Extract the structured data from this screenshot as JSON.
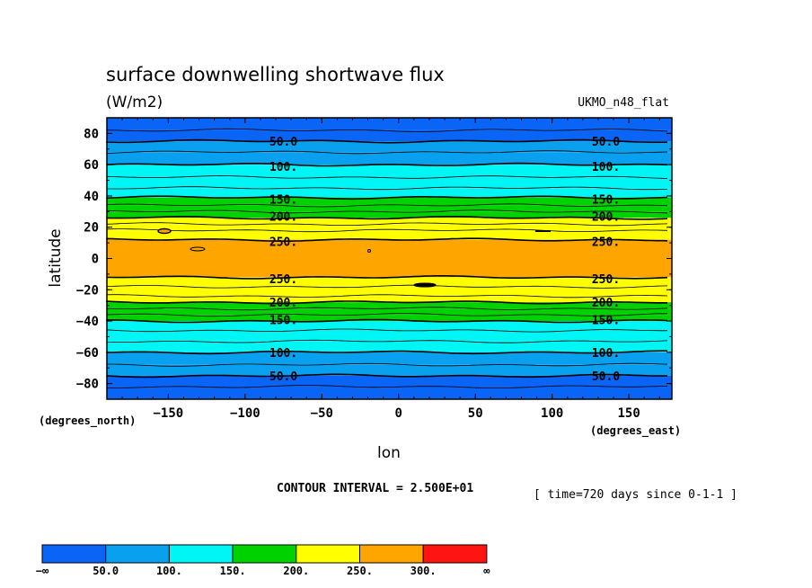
{
  "chart_data": {
    "type": "heatmap",
    "subtype": "filled contour (latitude bands)",
    "title": "surface downwelling shortwave flux",
    "units": "(W/m2)",
    "dataset": "UKMO_n48_flat",
    "xlabel": "lon",
    "ylabel": "latitude",
    "x_units": "(degrees_east)",
    "y_units": "(degrees_north)",
    "xlim": [
      -190,
      178
    ],
    "ylim": [
      -90,
      90
    ],
    "x_ticks": [
      -150,
      -100,
      -50,
      0,
      50,
      100,
      150
    ],
    "x_tick_labels": [
      "−150",
      "−100",
      "−50",
      "0",
      "50",
      "100",
      "150"
    ],
    "y_ticks": [
      80,
      60,
      40,
      20,
      0,
      -20,
      -40,
      -60,
      -80
    ],
    "y_tick_labels": [
      "80",
      "60",
      "40",
      "20",
      "0",
      "−20",
      "−40",
      "−60",
      "−80"
    ],
    "contour_interval_text": "CONTOUR INTERVAL = 2.500E+01",
    "time_text": "[ time=720 days since 0-1-1 ]",
    "levels": [
      50,
      100,
      150,
      200,
      250,
      300
    ],
    "colorbar": {
      "labels": [
        "−∞",
        "50.0",
        "100.",
        "150.",
        "200.",
        "250.",
        "300.",
        "∞"
      ],
      "colors": [
        "#0a64f5",
        "#0aa0f0",
        "#00f5f5",
        "#00d200",
        "#ffff00",
        "#ffa500",
        "#ff1414"
      ]
    },
    "bands": [
      {
        "lat_from": 90,
        "lat_to": 82,
        "color": "#0a64f5"
      },
      {
        "lat_from": 82,
        "lat_to": 75,
        "color": "#0a64f5"
      },
      {
        "lat_from": 75,
        "lat_to": 68,
        "color": "#0aa0f0"
      },
      {
        "lat_from": 68,
        "lat_to": 60,
        "color": "#0aa0f0"
      },
      {
        "lat_from": 60,
        "lat_to": 52,
        "color": "#00f5f5"
      },
      {
        "lat_from": 52,
        "lat_to": 45,
        "color": "#00f5f5"
      },
      {
        "lat_from": 45,
        "lat_to": 39,
        "color": "#00f5f5"
      },
      {
        "lat_from": 39,
        "lat_to": 34,
        "color": "#00d200"
      },
      {
        "lat_from": 34,
        "lat_to": 30,
        "color": "#00d200"
      },
      {
        "lat_from": 30,
        "lat_to": 26,
        "color": "#00d200"
      },
      {
        "lat_from": 26,
        "lat_to": 22,
        "color": "#ffff00"
      },
      {
        "lat_from": 22,
        "lat_to": 18,
        "color": "#ffff00"
      },
      {
        "lat_from": 18,
        "lat_to": 12,
        "color": "#ffff00"
      },
      {
        "lat_from": 12,
        "lat_to": -12,
        "color": "#ffa500"
      },
      {
        "lat_from": -12,
        "lat_to": -18,
        "color": "#ffff00"
      },
      {
        "lat_from": -18,
        "lat_to": -24,
        "color": "#ffff00"
      },
      {
        "lat_from": -24,
        "lat_to": -28,
        "color": "#ffff00"
      },
      {
        "lat_from": -28,
        "lat_to": -32,
        "color": "#00d200"
      },
      {
        "lat_from": -32,
        "lat_to": -36,
        "color": "#00d200"
      },
      {
        "lat_from": -36,
        "lat_to": -40,
        "color": "#00d200"
      },
      {
        "lat_from": -40,
        "lat_to": -46,
        "color": "#00f5f5"
      },
      {
        "lat_from": -46,
        "lat_to": -53,
        "color": "#00f5f5"
      },
      {
        "lat_from": -53,
        "lat_to": -60,
        "color": "#00f5f5"
      },
      {
        "lat_from": -60,
        "lat_to": -68,
        "color": "#0aa0f0"
      },
      {
        "lat_from": -68,
        "lat_to": -75,
        "color": "#0aa0f0"
      },
      {
        "lat_from": -75,
        "lat_to": -90,
        "color": "#0a64f5"
      }
    ],
    "contour_lines": [
      {
        "lat": 82,
        "bold": false
      },
      {
        "lat": 75,
        "bold": true
      },
      {
        "lat": 68,
        "bold": false
      },
      {
        "lat": 60,
        "bold": true
      },
      {
        "lat": 52,
        "bold": false
      },
      {
        "lat": 45,
        "bold": false
      },
      {
        "lat": 39,
        "bold": true
      },
      {
        "lat": 34,
        "bold": false
      },
      {
        "lat": 30,
        "bold": false
      },
      {
        "lat": 26,
        "bold": true
      },
      {
        "lat": 22,
        "bold": false
      },
      {
        "lat": 18,
        "bold": false
      },
      {
        "lat": 12,
        "bold": true
      },
      {
        "lat": -12,
        "bold": true
      },
      {
        "lat": -18,
        "bold": false
      },
      {
        "lat": -24,
        "bold": false
      },
      {
        "lat": -28,
        "bold": true
      },
      {
        "lat": -32,
        "bold": false
      },
      {
        "lat": -36,
        "bold": false
      },
      {
        "lat": -40,
        "bold": true
      },
      {
        "lat": -46,
        "bold": false
      },
      {
        "lat": -53,
        "bold": false
      },
      {
        "lat": -60,
        "bold": true
      },
      {
        "lat": -68,
        "bold": false
      },
      {
        "lat": -75,
        "bold": true
      },
      {
        "lat": -82,
        "bold": false
      }
    ],
    "contour_labels": [
      {
        "text": "50.0",
        "lon": -75,
        "lat": 75
      },
      {
        "text": "50.0",
        "lon": 135,
        "lat": 75
      },
      {
        "text": "100.",
        "lon": -75,
        "lat": 59
      },
      {
        "text": "100.",
        "lon": 135,
        "lat": 59
      },
      {
        "text": "150.",
        "lon": -75,
        "lat": 38
      },
      {
        "text": "150.",
        "lon": 135,
        "lat": 38
      },
      {
        "text": "200.",
        "lon": -75,
        "lat": 27
      },
      {
        "text": "200.",
        "lon": 135,
        "lat": 27
      },
      {
        "text": "250.",
        "lon": -75,
        "lat": 11
      },
      {
        "text": "250.",
        "lon": 135,
        "lat": 11
      },
      {
        "text": "250.",
        "lon": -75,
        "lat": -13
      },
      {
        "text": "250.",
        "lon": 135,
        "lat": -13
      },
      {
        "text": "200.",
        "lon": -75,
        "lat": -28
      },
      {
        "text": "200.",
        "lon": 135,
        "lat": -28
      },
      {
        "text": "150.",
        "lon": -75,
        "lat": -39
      },
      {
        "text": "150.",
        "lon": 135,
        "lat": -39
      },
      {
        "text": "100.",
        "lon": -75,
        "lat": -60
      },
      {
        "text": "100.",
        "lon": 135,
        "lat": -60
      },
      {
        "text": "50.0",
        "lon": -75,
        "lat": -75
      },
      {
        "text": "50.0",
        "lon": 135,
        "lat": -75
      }
    ]
  }
}
